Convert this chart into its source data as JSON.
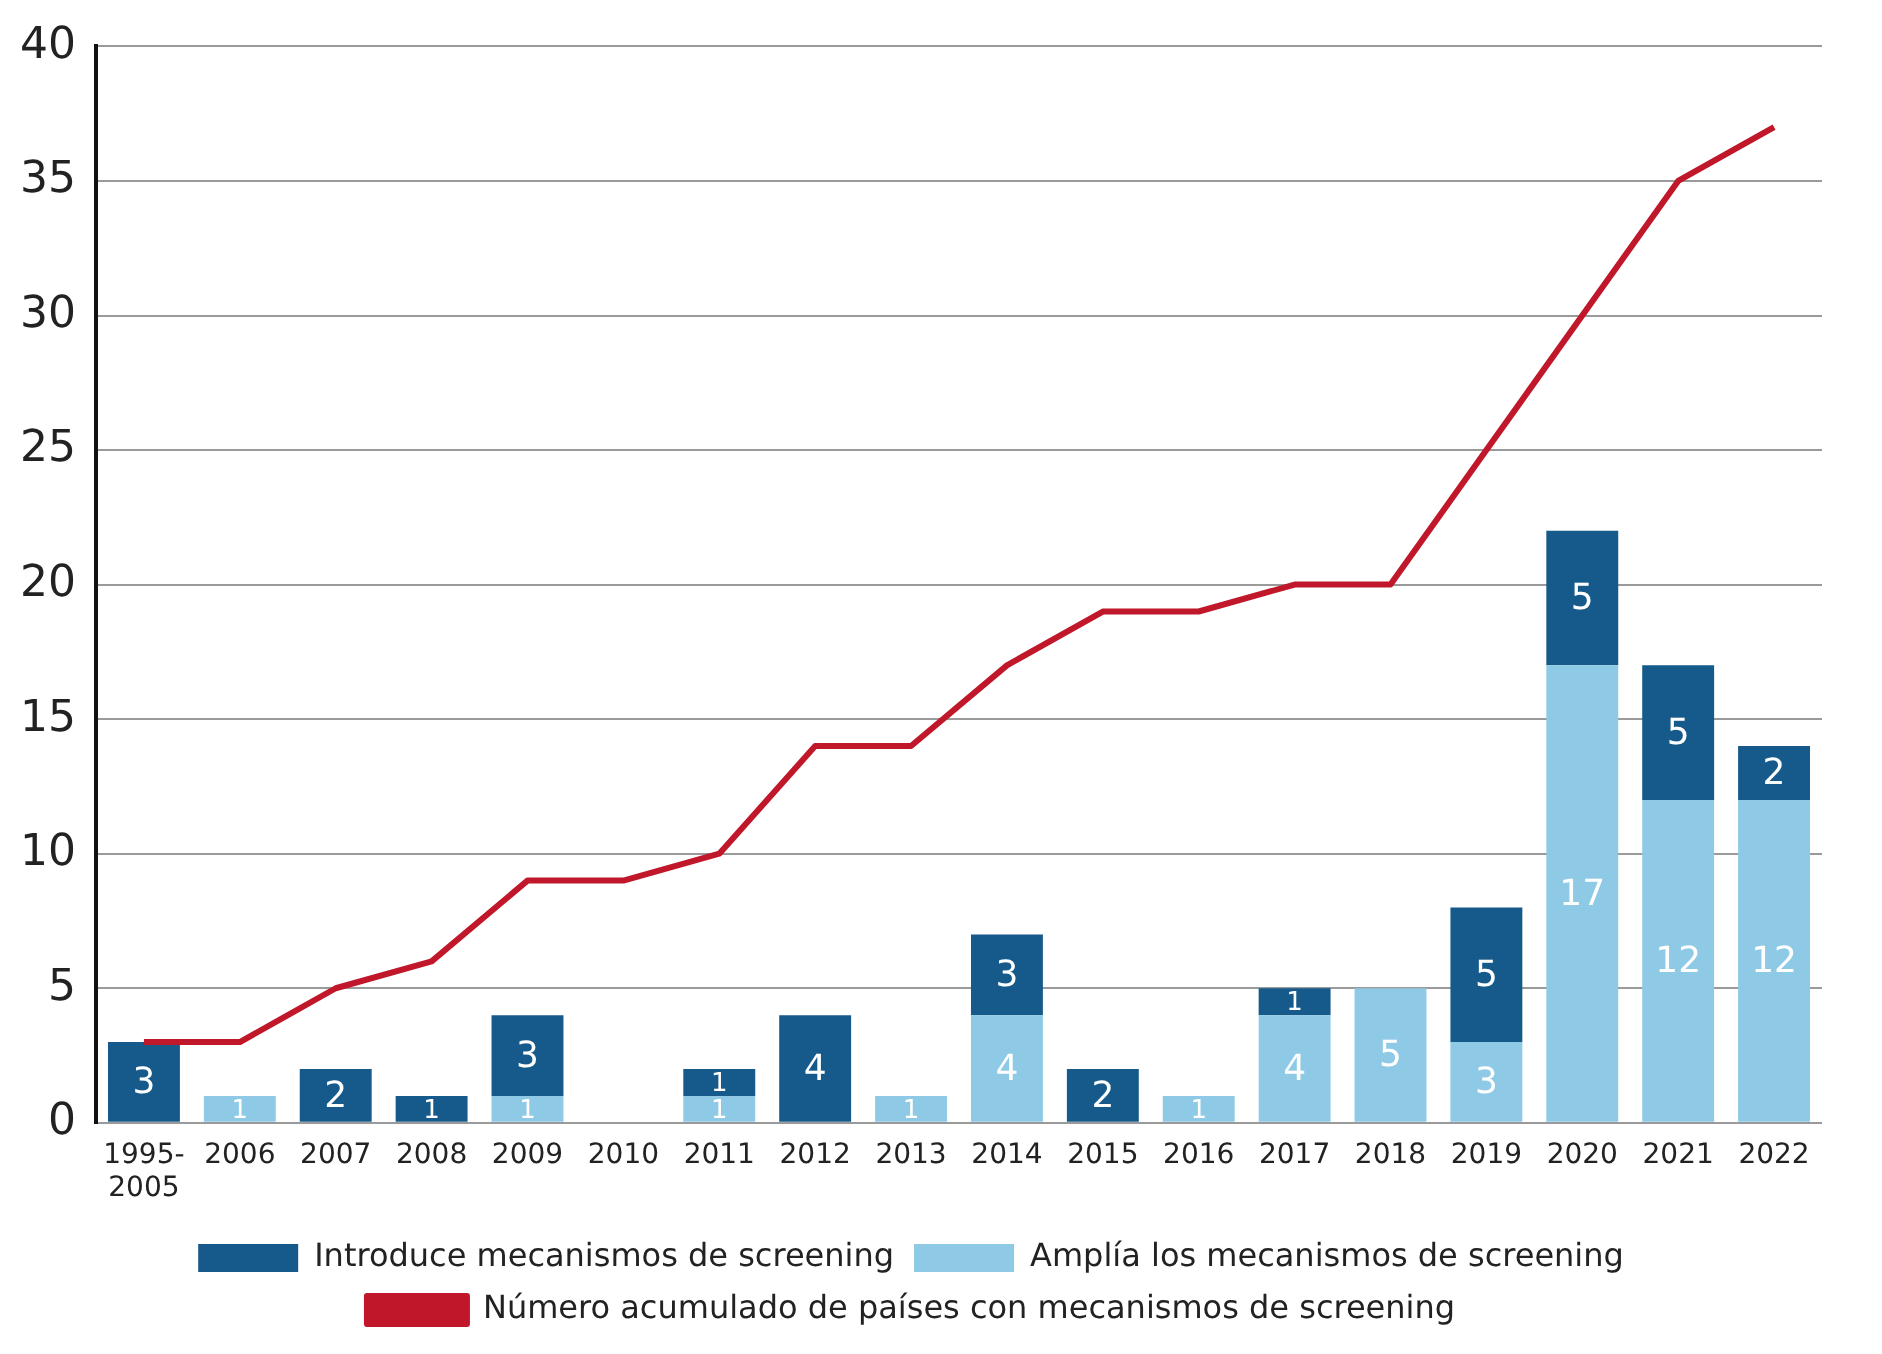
{
  "chart_data": {
    "type": "bar",
    "stacked": true,
    "categories": [
      "1995-2005",
      "2006",
      "2007",
      "2008",
      "2009",
      "2010",
      "2011",
      "2012",
      "2013",
      "2014",
      "2015",
      "2016",
      "2017",
      "2018",
      "2019",
      "2020",
      "2021",
      "2022"
    ],
    "series": [
      {
        "name": "Amplía los mecanismos de screening",
        "color": "#8ecae6",
        "values": [
          0,
          1,
          0,
          0,
          1,
          0,
          1,
          0,
          1,
          4,
          0,
          1,
          4,
          5,
          3,
          17,
          12,
          12
        ],
        "value_labels": [
          null,
          "1",
          null,
          null,
          "1",
          null,
          "1",
          null,
          "1",
          "4",
          null,
          "1",
          "4",
          "5",
          "3",
          "17",
          "12",
          "12"
        ]
      },
      {
        "name": "Introduce mecanismos de screening",
        "color": "#155a8a",
        "values": [
          3,
          0,
          2,
          1,
          3,
          0,
          1,
          4,
          0,
          3,
          2,
          0,
          1,
          0,
          5,
          5,
          5,
          2
        ],
        "value_labels": [
          "3",
          null,
          "2",
          "1",
          "3",
          null,
          "1",
          "4",
          null,
          "3",
          "2",
          null,
          "1",
          null,
          "5",
          "5",
          "5",
          "2"
        ]
      },
      {
        "name": "Número acumulado de países con mecanismos de screening",
        "type": "line",
        "color": "#c0182a",
        "values": [
          3,
          3,
          5,
          6,
          9,
          9,
          10,
          14,
          14,
          17,
          19,
          19,
          20,
          20,
          25,
          30,
          35,
          37
        ]
      }
    ],
    "ylim": [
      0,
      40
    ],
    "yticks": [
      0,
      5,
      10,
      15,
      20,
      25,
      30,
      35,
      40
    ],
    "grid": "y",
    "legend": "bottom",
    "marker": "none"
  }
}
